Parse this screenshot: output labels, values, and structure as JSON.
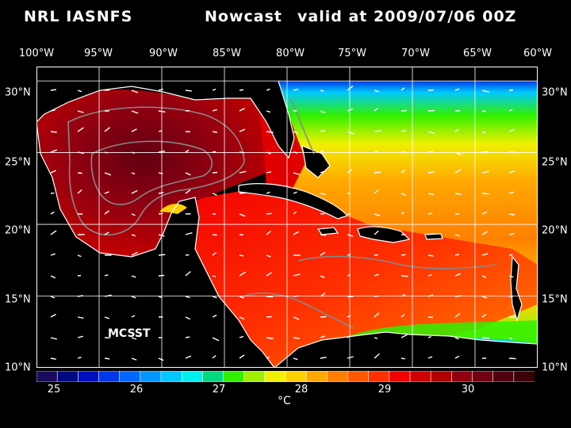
{
  "title": {
    "model": "NRL IASNFS",
    "product": "Nowcast",
    "valid": "valid at 2009/07/06 00Z"
  },
  "axes": {
    "lon_labels": [
      "100°W",
      "95°W",
      "90°W",
      "85°W",
      "80°W",
      "75°W",
      "70°W",
      "65°W",
      "60°W"
    ],
    "lat_labels": [
      "30°N",
      "25°N",
      "20°N",
      "15°N",
      "10°N"
    ],
    "lon_range": [
      -100,
      -60
    ],
    "lat_range": [
      10,
      31
    ]
  },
  "legend": {
    "tick_labels": [
      "25",
      "26",
      "27",
      "28",
      "29",
      "30"
    ],
    "unit": "°C",
    "range": [
      24.75,
      31.0
    ],
    "colors": [
      "#1a0a5a",
      "#000a80",
      "#0010c0",
      "#0038e8",
      "#0068ff",
      "#0098ff",
      "#00c8ff",
      "#00f0f0",
      "#00d880",
      "#30f000",
      "#a0f000",
      "#f0f000",
      "#ffd000",
      "#ffa800",
      "#ff8000",
      "#ff5800",
      "#ff3000",
      "#f00000",
      "#d00000",
      "#b00000",
      "#900010",
      "#700010",
      "#500010",
      "#3a0008"
    ]
  },
  "overlay": {
    "source_label": "MCSST"
  }
}
